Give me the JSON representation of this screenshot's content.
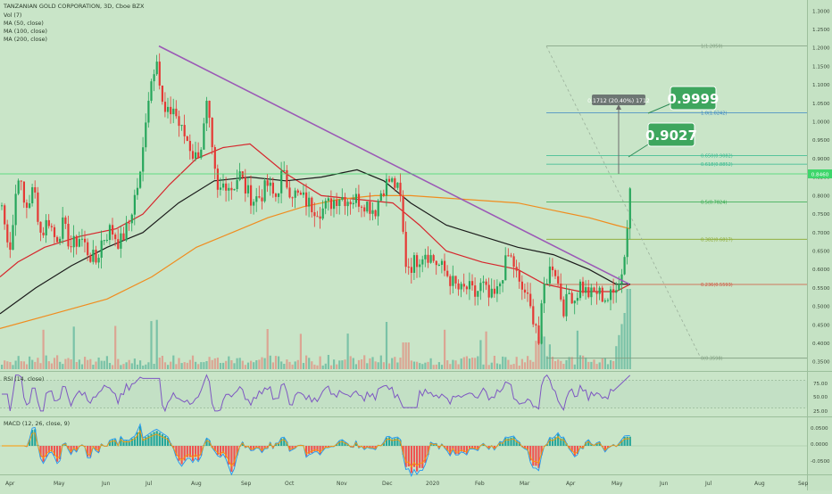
{
  "header": {
    "symbol_line": "TANZANIAN GOLD CORPORATION, 3D, Cboe BZX",
    "indicators": [
      "Vol (7)",
      "MA (50, close)",
      "MA (100, close)",
      "MA (200, close)"
    ]
  },
  "price_axis": {
    "ticks": [
      "1.3000",
      "1.2500",
      "1.2000",
      "1.1500",
      "1.1000",
      "1.0500",
      "1.0000",
      "0.9500",
      "0.9000",
      "0.8500",
      "0.8000",
      "0.7500",
      "0.7000",
      "0.6500",
      "0.6000",
      "0.5500",
      "0.5000",
      "0.4500",
      "0.4000",
      "0.3500"
    ],
    "last_price": "0.8460",
    "last_price_value": 0.846
  },
  "callouts": {
    "target_high": "0.9999",
    "target_mid": "0.9027",
    "measure": "0.1712 (20.40%) 1712"
  },
  "fib_levels": [
    {
      "label": "1(1.2050)",
      "value": 1.205,
      "color": "#7f9c7f"
    },
    {
      "label": "1.0(1.0242)",
      "value": 1.0242,
      "color": "#3b86c4"
    },
    {
      "label": "0.650(0.9082)",
      "value": 0.9082,
      "color": "#31b88e"
    },
    {
      "label": "0.618(0.8852)",
      "value": 0.8852,
      "color": "#31b88e"
    },
    {
      "label": "0.5(0.7824)",
      "value": 0.7824,
      "color": "#2fa84a"
    },
    {
      "label": "0.382(0.6817)",
      "value": 0.6817,
      "color": "#8aa82e"
    },
    {
      "label": "0.236(0.5593)",
      "value": 0.5593,
      "color": "#d0503a"
    },
    {
      "label": "0(0.3598)",
      "value": 0.3598,
      "color": "#7f9c7f"
    }
  ],
  "rsi": {
    "title": "RSI (14, close)",
    "ticks": [
      "75.00",
      "50.00",
      "25.00"
    ]
  },
  "macd": {
    "title": "MACD (12, 26, close, 9)",
    "ticks": [
      "0.0500",
      "0.0000",
      "-0.0500"
    ]
  },
  "time_axis": [
    "Apr",
    "May",
    "Jun",
    "Jul",
    "Aug",
    "Sep",
    "Oct",
    "Nov",
    "Dec",
    "2020",
    "Feb",
    "Mar",
    "Apr",
    "May",
    "Jun",
    "Jul",
    "Aug",
    "Sep"
  ],
  "chart_data": {
    "type": "candlestick",
    "title": "TANZANIAN GOLD CORPORATION, 3D, Cboe BZX",
    "ylim": [
      0.33,
      1.32
    ],
    "close_path": [
      [
        0,
        0.81
      ],
      [
        5,
        0.72
      ],
      [
        12,
        0.66
      ],
      [
        20,
        0.87
      ],
      [
        28,
        0.76
      ],
      [
        38,
        0.82
      ],
      [
        46,
        0.69
      ],
      [
        54,
        0.74
      ],
      [
        62,
        0.68
      ],
      [
        70,
        0.72
      ],
      [
        80,
        0.66
      ],
      [
        90,
        0.69
      ],
      [
        100,
        0.64
      ],
      [
        108,
        0.62
      ],
      [
        114,
        0.68
      ],
      [
        124,
        0.71
      ],
      [
        134,
        0.67
      ],
      [
        144,
        0.72
      ],
      [
        152,
        0.81
      ],
      [
        158,
        0.86
      ],
      [
        164,
        1.04
      ],
      [
        170,
        1.12
      ],
      [
        176,
        1.19
      ],
      [
        180,
        1.06
      ],
      [
        186,
        1.01
      ],
      [
        194,
        1.04
      ],
      [
        202,
        0.98
      ],
      [
        210,
        0.95
      ],
      [
        218,
        0.9
      ],
      [
        226,
        0.94
      ],
      [
        232,
        1.05
      ],
      [
        238,
        0.9
      ],
      [
        244,
        0.8
      ],
      [
        252,
        0.84
      ],
      [
        260,
        0.82
      ],
      [
        268,
        0.86
      ],
      [
        276,
        0.81
      ],
      [
        284,
        0.79
      ],
      [
        292,
        0.8
      ],
      [
        300,
        0.83
      ],
      [
        308,
        0.79
      ],
      [
        316,
        0.86
      ],
      [
        324,
        0.82
      ],
      [
        332,
        0.8
      ],
      [
        340,
        0.79
      ],
      [
        350,
        0.77
      ],
      [
        360,
        0.76
      ],
      [
        370,
        0.78
      ],
      [
        380,
        0.8
      ],
      [
        390,
        0.79
      ],
      [
        400,
        0.79
      ],
      [
        410,
        0.78
      ],
      [
        420,
        0.76
      ],
      [
        428,
        0.82
      ],
      [
        436,
        0.84
      ],
      [
        442,
        0.83
      ],
      [
        448,
        0.8
      ],
      [
        454,
        0.62
      ],
      [
        460,
        0.61
      ],
      [
        468,
        0.63
      ],
      [
        476,
        0.65
      ],
      [
        484,
        0.63
      ],
      [
        492,
        0.61
      ],
      [
        500,
        0.59
      ],
      [
        508,
        0.56
      ],
      [
        516,
        0.54
      ],
      [
        524,
        0.55
      ],
      [
        532,
        0.53
      ],
      [
        540,
        0.56
      ],
      [
        548,
        0.52
      ],
      [
        556,
        0.53
      ],
      [
        564,
        0.6
      ],
      [
        570,
        0.64
      ],
      [
        576,
        0.61
      ],
      [
        582,
        0.55
      ],
      [
        588,
        0.54
      ],
      [
        594,
        0.49
      ],
      [
        600,
        0.46
      ],
      [
        604,
        0.39
      ],
      [
        608,
        0.54
      ],
      [
        614,
        0.59
      ],
      [
        620,
        0.62
      ],
      [
        626,
        0.55
      ],
      [
        632,
        0.49
      ],
      [
        638,
        0.54
      ],
      [
        644,
        0.52
      ],
      [
        650,
        0.56
      ],
      [
        656,
        0.54
      ],
      [
        662,
        0.53
      ],
      [
        668,
        0.54
      ],
      [
        674,
        0.53
      ],
      [
        680,
        0.52
      ],
      [
        686,
        0.53
      ],
      [
        692,
        0.55
      ],
      [
        698,
        0.6
      ],
      [
        702,
        0.69
      ],
      [
        706,
        0.83
      ]
    ],
    "series": [
      {
        "name": "MA (50, close)",
        "color": "#d6262c"
      },
      {
        "name": "MA (100, close)",
        "color": "#1b1b1b"
      },
      {
        "name": "MA (200, close)",
        "color": "#f08c1e"
      }
    ],
    "trendline": {
      "from": [
        178,
        1.205
      ],
      "to": [
        705,
        0.56
      ],
      "color": "#9b59b6"
    },
    "grid": false
  }
}
